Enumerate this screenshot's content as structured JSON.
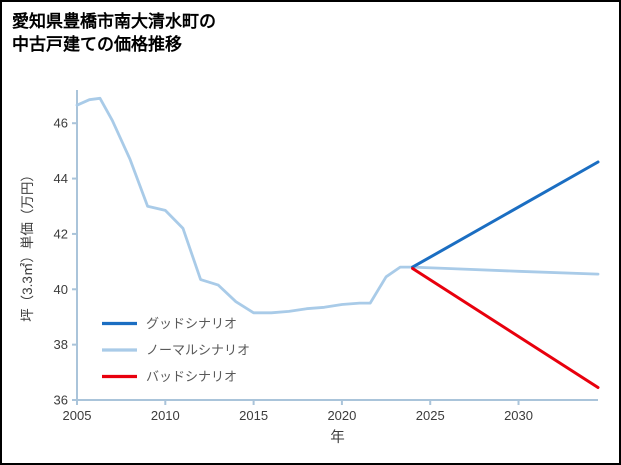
{
  "title_line1": "愛知県豊橋市南大清水町の",
  "title_line2": "中古戸建ての価格推移",
  "chart_data": {
    "type": "line",
    "title": "愛知県豊橋市南大清水町の中古戸建ての価格推移",
    "xlabel": "年",
    "ylabel": "坪（3.3㎡）単価（万円）",
    "xlim": [
      2005,
      2034.5
    ],
    "ylim": [
      36,
      47.2
    ],
    "xticks": [
      2005,
      2010,
      2015,
      2020,
      2025,
      2030
    ],
    "yticks": [
      36,
      38,
      40,
      42,
      44,
      46
    ],
    "grid": false,
    "legend_position": "inside-lower-left",
    "colors": {
      "axis": "#aac4da",
      "tick_label": "#3c3c3c",
      "legend_label": "#595959"
    },
    "series": [
      {
        "key": "good-scenario",
        "name": "グッドシナリオ",
        "color": "#1b6ec2",
        "width": 3,
        "x": [
          2024,
          2034.5
        ],
        "y": [
          40.8,
          44.6
        ]
      },
      {
        "key": "normal-scenario",
        "name": "ノーマルシナリオ",
        "color": "#a9cbe8",
        "width": 2.8,
        "x": [
          2005,
          2005.7,
          2006.3,
          2007,
          2008,
          2009,
          2010,
          2011,
          2012,
          2013,
          2014,
          2015,
          2016,
          2017,
          2018,
          2019,
          2020,
          2021,
          2021.6,
          2022.5,
          2023.3,
          2024,
          2026,
          2030,
          2034.5
        ],
        "y": [
          46.65,
          46.85,
          46.9,
          46.1,
          44.7,
          43.0,
          42.85,
          42.2,
          40.35,
          40.15,
          39.55,
          39.15,
          39.15,
          39.2,
          39.3,
          39.35,
          39.45,
          39.5,
          39.5,
          40.45,
          40.8,
          40.8,
          40.75,
          40.65,
          40.55
        ]
      },
      {
        "key": "bad-scenario",
        "name": "バッドシナリオ",
        "color": "#e8000d",
        "width": 3,
        "x": [
          2024,
          2034.5
        ],
        "y": [
          40.75,
          36.45
        ]
      }
    ]
  }
}
